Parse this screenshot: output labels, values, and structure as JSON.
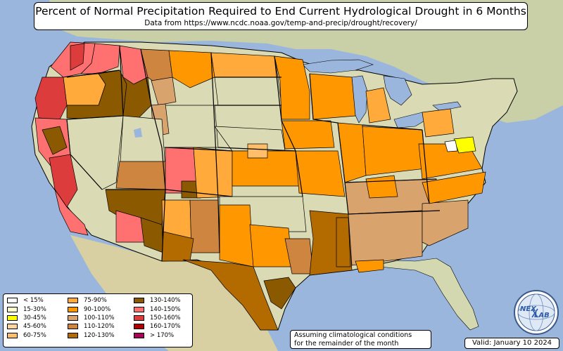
{
  "title": "Percent of Normal Precipitation Required to End Current Hydrological Drought in 6 Months",
  "subtitle": "Data from https://www.ncdc.noaa.gov/temp-and-precip/drought/recovery/",
  "legend": [
    {
      "label": "< 15%",
      "color": "#ffffff"
    },
    {
      "label": "15-30%",
      "color": "#ffffcc"
    },
    {
      "label": "30-45%",
      "color": "#ffff00"
    },
    {
      "label": "45-60%",
      "color": "#ffd6a0"
    },
    {
      "label": "60-75%",
      "color": "#ffbf6a"
    },
    {
      "label": "75-90%",
      "color": "#ffaa3a"
    },
    {
      "label": "90-100%",
      "color": "#ff9800"
    },
    {
      "label": "100-110%",
      "color": "#d9a36e"
    },
    {
      "label": "110-120%",
      "color": "#cd853f"
    },
    {
      "label": "120-130%",
      "color": "#b36b00"
    },
    {
      "label": "130-140%",
      "color": "#8b5a00"
    },
    {
      "label": "140-150%",
      "color": "#ff7070"
    },
    {
      "label": "150-160%",
      "color": "#dd3c3c"
    },
    {
      "label": "160-170%",
      "color": "#aa0000"
    },
    {
      "label": "> 170%",
      "color": "#aa0055"
    }
  ],
  "note": {
    "line1": "Assuming climatological conditions",
    "line2": "for the remainder of the month"
  },
  "valid": "Valid: January 10 2024",
  "logo": {
    "text_top": "NEX",
    "text_bottom": "LAB"
  },
  "colors": {
    "ocean": "#9ab6dc",
    "land": "#d9d9b0",
    "state_border": "#000000"
  }
}
